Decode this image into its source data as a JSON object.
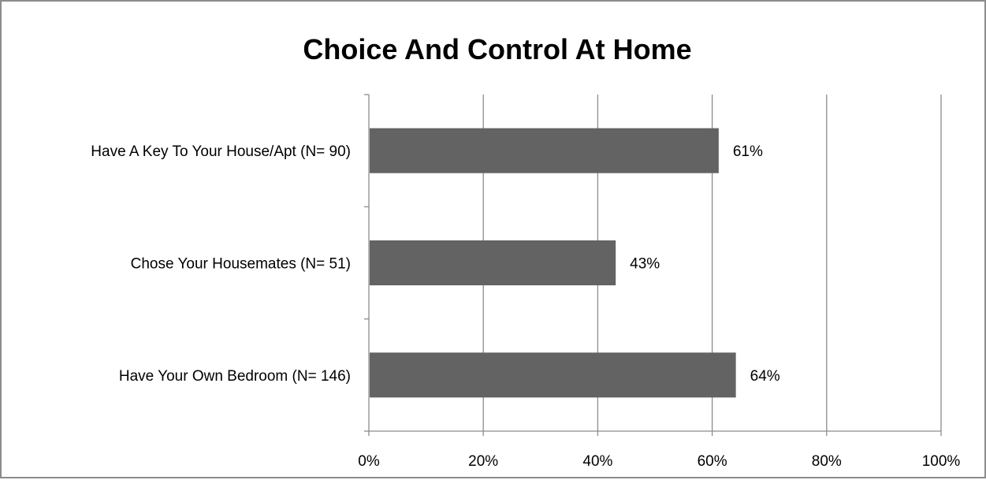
{
  "chart_data": {
    "type": "bar",
    "orientation": "horizontal",
    "title": "Choice And Control At Home",
    "xlabel": "",
    "ylabel": "",
    "categories": [
      "Have A Key To Your House/Apt (N= 90)",
      "Chose Your Housemates (N= 51)",
      "Have Your Own Bedroom (N= 146)"
    ],
    "values": [
      61,
      43,
      64
    ],
    "data_labels": [
      "61%",
      "43%",
      "64%"
    ],
    "xlim": [
      0,
      100
    ],
    "x_ticks": [
      0,
      20,
      40,
      60,
      80,
      100
    ],
    "x_tick_labels": [
      "0%",
      "20%",
      "40%",
      "60%",
      "80%",
      "100%"
    ],
    "grid": true,
    "legend": "none",
    "bar_color": "#636363",
    "grid_color": "#8c8c8c"
  }
}
